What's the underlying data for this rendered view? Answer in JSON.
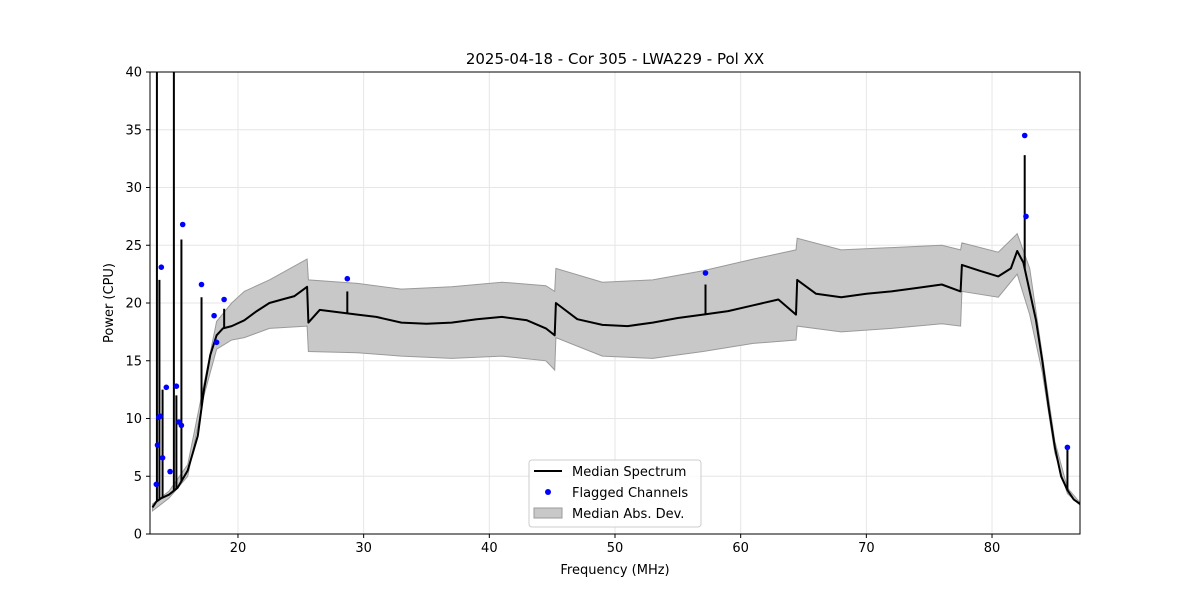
{
  "chart_data": {
    "type": "line",
    "title": "2025-04-18 - Cor 305 - LWA229 - Pol XX",
    "xlabel": "Frequency (MHz)",
    "ylabel": "Power (CPU)",
    "xlim": [
      13.0,
      87.0
    ],
    "ylim": [
      0,
      40
    ],
    "xticks": [
      20,
      30,
      40,
      50,
      60,
      70,
      80
    ],
    "yticks": [
      0,
      5,
      10,
      15,
      20,
      25,
      30,
      35,
      40
    ],
    "grid": true,
    "legend_placement": "bottom-center",
    "colors": {
      "median": "#000000",
      "flagged": "#0000ff",
      "mad_fill": "#c8c8c8",
      "mad_edge": "#9a9a9a"
    },
    "series": [
      {
        "name": "Median Spectrum",
        "kind": "line",
        "x": [
          13.2,
          13.5,
          13.9,
          14.5,
          15.2,
          16.0,
          16.8,
          17.3,
          17.8,
          18.3,
          18.8,
          19.5,
          20.5,
          21.5,
          22.5,
          23.5,
          24.5,
          25.5,
          25.6,
          26.5,
          28.0,
          29.5,
          31.0,
          33.0,
          35.0,
          37.0,
          39.0,
          41.0,
          43.0,
          44.5,
          45.2,
          45.3,
          47.0,
          49.0,
          51.0,
          53.0,
          55.0,
          57.0,
          59.0,
          61.0,
          63.0,
          64.4,
          64.5,
          66.0,
          68.0,
          70.0,
          72.0,
          74.0,
          76.0,
          77.5,
          77.6,
          79.0,
          80.5,
          81.5,
          82.0,
          82.5,
          83.0,
          83.5,
          84.0,
          84.5,
          85.0,
          85.5,
          86.0,
          86.5,
          87.0
        ],
        "y": [
          2.3,
          2.8,
          3.1,
          3.4,
          4.0,
          5.5,
          8.5,
          12.5,
          15.5,
          17.2,
          17.8,
          18.0,
          18.5,
          19.3,
          20.0,
          20.3,
          20.6,
          21.4,
          18.3,
          19.4,
          19.2,
          19.0,
          18.8,
          18.3,
          18.2,
          18.3,
          18.6,
          18.8,
          18.5,
          17.8,
          17.2,
          20.0,
          18.6,
          18.1,
          18.0,
          18.3,
          18.7,
          19.0,
          19.3,
          19.8,
          20.3,
          19.0,
          22.0,
          20.8,
          20.5,
          20.8,
          21.0,
          21.3,
          21.6,
          21.0,
          23.3,
          22.8,
          22.3,
          23.0,
          24.5,
          23.5,
          21.0,
          18.5,
          15.0,
          11.0,
          7.5,
          5.0,
          3.8,
          3.0,
          2.6
        ]
      },
      {
        "name": "Flagged Channels",
        "kind": "scatter",
        "x": [
          13.5,
          13.6,
          13.7,
          13.8,
          13.9,
          14.0,
          14.3,
          14.6,
          15.1,
          15.3,
          15.5,
          15.6,
          17.1,
          18.1,
          18.3,
          18.9,
          28.7,
          57.2,
          82.6,
          82.7,
          86.0
        ],
        "y": [
          4.3,
          7.7,
          10.1,
          10.2,
          23.1,
          6.6,
          12.7,
          5.4,
          12.8,
          9.7,
          9.4,
          26.8,
          21.6,
          18.9,
          16.6,
          20.3,
          22.1,
          22.6,
          34.5,
          27.5,
          7.5
        ]
      },
      {
        "name": "Median Abs. Dev.",
        "kind": "band",
        "x": [
          13.2,
          14.5,
          16.0,
          17.3,
          18.3,
          19.5,
          20.5,
          22.5,
          25.5,
          25.6,
          29.5,
          33.0,
          37.0,
          41.0,
          44.5,
          45.2,
          45.3,
          49.0,
          53.0,
          57.0,
          61.0,
          64.4,
          64.5,
          68.0,
          72.0,
          76.0,
          77.5,
          77.6,
          80.5,
          82.0,
          83.0,
          84.0,
          85.0,
          86.0,
          87.0
        ],
        "y_upper": [
          2.6,
          3.7,
          6.0,
          13.0,
          18.4,
          20.0,
          21.0,
          22.0,
          23.8,
          22.0,
          21.7,
          21.2,
          21.4,
          21.8,
          21.5,
          21.0,
          23.0,
          21.8,
          22.0,
          22.8,
          23.8,
          24.6,
          25.6,
          24.6,
          24.8,
          25.0,
          24.6,
          25.2,
          24.4,
          26.0,
          23.0,
          15.5,
          8.0,
          4.0,
          2.7
        ],
        "y_lower": [
          2.0,
          3.1,
          5.0,
          12.0,
          16.0,
          16.8,
          17.0,
          17.8,
          18.0,
          15.8,
          15.7,
          15.4,
          15.2,
          15.4,
          15.0,
          14.2,
          17.0,
          15.4,
          15.2,
          15.8,
          16.5,
          16.8,
          18.0,
          17.5,
          17.8,
          18.2,
          18.0,
          21.0,
          20.5,
          22.5,
          19.0,
          14.0,
          7.0,
          3.5,
          2.5
        ]
      }
    ],
    "spikes": [
      {
        "x": 13.55,
        "y": 40.0
      },
      {
        "x": 13.75,
        "y": 22.0
      },
      {
        "x": 14.0,
        "y": 12.5
      },
      {
        "x": 14.9,
        "y": 40.0
      },
      {
        "x": 15.1,
        "y": 12.0
      },
      {
        "x": 15.5,
        "y": 25.5
      },
      {
        "x": 17.1,
        "y": 20.5
      },
      {
        "x": 18.9,
        "y": 19.5
      },
      {
        "x": 28.7,
        "y": 21.0
      },
      {
        "x": 57.2,
        "y": 21.6
      },
      {
        "x": 82.6,
        "y": 32.8
      },
      {
        "x": 86.0,
        "y": 7.3
      }
    ],
    "legend": [
      {
        "label": "Median Spectrum",
        "kind": "line"
      },
      {
        "label": "Flagged Channels",
        "kind": "scatter"
      },
      {
        "label": "Median Abs. Dev.",
        "kind": "band"
      }
    ]
  }
}
